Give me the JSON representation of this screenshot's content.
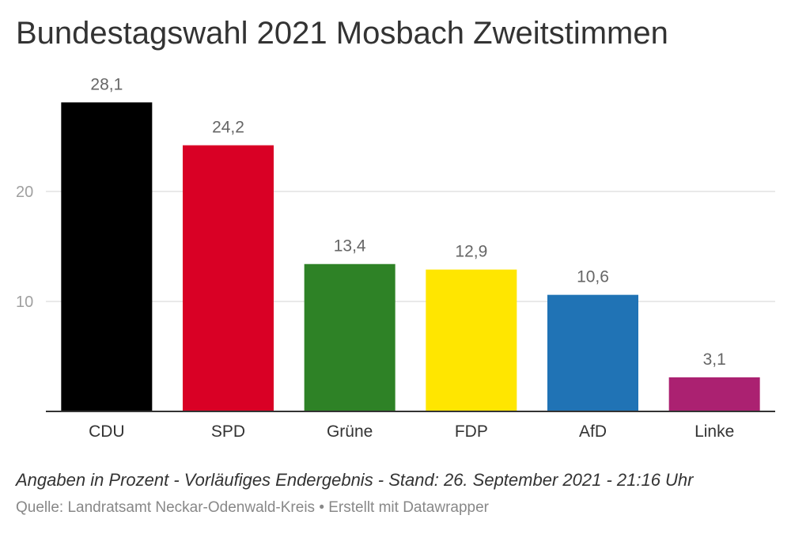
{
  "title": "Bundestagswahl 2021 Mosbach Zweitstimmen",
  "note": "Angaben in Prozent - Vorläufiges Endergebnis - Stand: 26. September 2021 - 21:16 Uhr",
  "source": "Quelle: Landratsamt Neckar-Odenwald-Kreis • Erstellt mit Datawrapper",
  "chart_data": {
    "type": "bar",
    "categories": [
      "CDU",
      "SPD",
      "Grüne",
      "FDP",
      "AfD",
      "Linke"
    ],
    "values": [
      28.1,
      24.2,
      13.4,
      12.9,
      10.6,
      3.1
    ],
    "value_labels": [
      "28,1",
      "24,2",
      "13,4",
      "12,9",
      "10,6",
      "3,1"
    ],
    "colors": [
      "#000000",
      "#d90025",
      "#2e8226",
      "#ffe600",
      "#2073b5",
      "#ab2171"
    ],
    "yticks": [
      10,
      20
    ],
    "ylim": [
      0,
      28.1
    ],
    "grid": true,
    "title": "Bundestagswahl 2021 Mosbach Zweitstimmen",
    "xlabel": "",
    "ylabel": ""
  }
}
